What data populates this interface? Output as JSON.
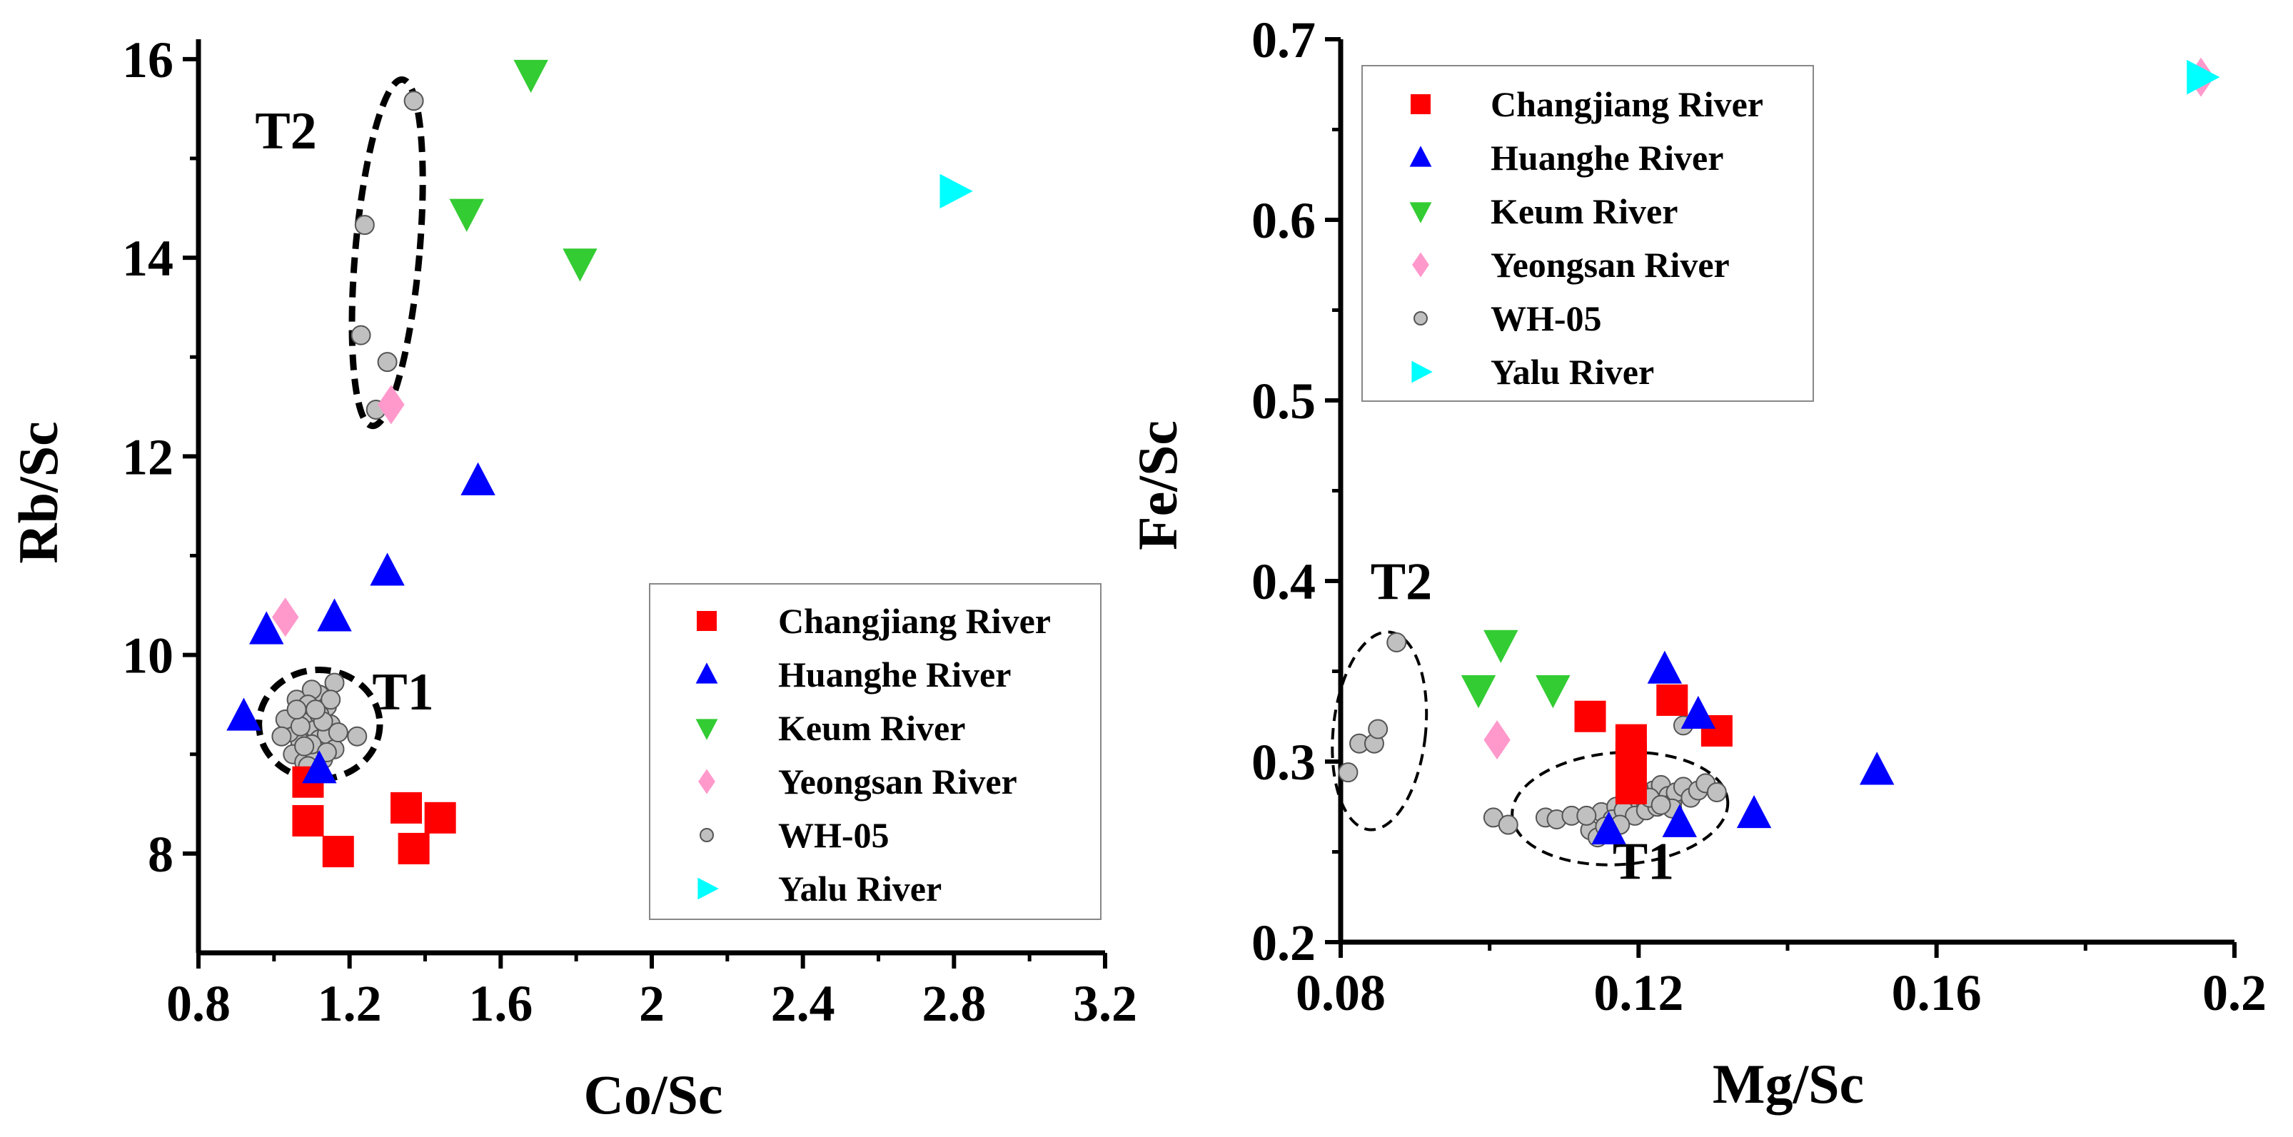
{
  "chart_data": [
    {
      "type": "scatter",
      "title": "",
      "xlabel": "Co/Sc",
      "ylabel": "Rb/Sc",
      "xlim": [
        0.8,
        3.2
      ],
      "ylim": [
        7,
        16.2
      ],
      "xticks": [
        0.8,
        1.2,
        1.6,
        2,
        2.4,
        2.8,
        3.2
      ],
      "xtick_labels": [
        "0.8",
        "1.2",
        "1.6",
        "2",
        "2.4",
        "2.8",
        "3.2"
      ],
      "yticks": [
        8,
        10,
        12,
        14,
        16
      ],
      "ytick_labels": [
        "8",
        "10",
        "12",
        "14",
        "16"
      ],
      "grid": false,
      "legend_position": "bottom-right",
      "series": [
        {
          "name": "Changjiang River",
          "marker": "square",
          "color": "#ff0000",
          "points": [
            [
              1.09,
              8.33
            ],
            [
              1.17,
              8.02
            ],
            [
              1.35,
              8.46
            ],
            [
              1.37,
              8.05
            ],
            [
              1.44,
              8.36
            ],
            [
              1.09,
              8.72
            ]
          ]
        },
        {
          "name": "Huanghe River",
          "marker": "triangle-up",
          "color": "#0000ff",
          "points": [
            [
              0.92,
              9.38
            ],
            [
              0.98,
              10.25
            ],
            [
              1.12,
              8.85
            ],
            [
              1.16,
              10.38
            ],
            [
              1.3,
              10.84
            ],
            [
              1.54,
              11.75
            ]
          ]
        },
        {
          "name": "Keum River",
          "marker": "triangle-down",
          "color": "#33cc33",
          "points": [
            [
              1.68,
              15.85
            ],
            [
              1.51,
              14.45
            ],
            [
              1.81,
              13.95
            ]
          ]
        },
        {
          "name": "Yeongsan River",
          "marker": "diamond",
          "color": "#ff99cc",
          "points": [
            [
              1.03,
              10.38
            ],
            [
              1.31,
              12.52
            ]
          ]
        },
        {
          "name": "WH-05",
          "marker": "circle",
          "color": "#c0c0c0",
          "points": [
            [
              1.37,
              15.58
            ],
            [
              1.24,
              14.33
            ],
            [
              1.23,
              13.22
            ],
            [
              1.3,
              12.95
            ],
            [
              1.27,
              12.47
            ],
            [
              1.22,
              9.18
            ],
            [
              1.06,
              9.55
            ],
            [
              1.08,
              9.42
            ],
            [
              1.1,
              9.35
            ],
            [
              1.12,
              9.6
            ],
            [
              1.14,
              9.48
            ],
            [
              1.16,
              9.72
            ],
            [
              1.07,
              9.12
            ],
            [
              1.09,
              9.05
            ],
            [
              1.11,
              9.25
            ],
            [
              1.13,
              8.95
            ],
            [
              1.15,
              9.3
            ],
            [
              1.05,
              9.0
            ],
            [
              1.08,
              8.92
            ],
            [
              1.1,
              9.65
            ],
            [
              1.12,
              9.15
            ],
            [
              1.14,
              9.2
            ],
            [
              1.06,
              9.3
            ],
            [
              1.09,
              9.5
            ],
            [
              1.11,
              8.98
            ],
            [
              1.04,
              9.22
            ],
            [
              1.16,
              9.05
            ],
            [
              1.12,
              9.4
            ],
            [
              1.1,
              9.1
            ],
            [
              1.03,
              9.35
            ],
            [
              1.15,
              9.55
            ],
            [
              1.07,
              9.28
            ],
            [
              1.13,
              9.33
            ],
            [
              1.08,
              9.08
            ],
            [
              1.11,
              9.45
            ],
            [
              1.09,
              8.88
            ],
            [
              1.14,
              9.02
            ],
            [
              1.02,
              9.18
            ],
            [
              1.17,
              9.22
            ],
            [
              1.06,
              9.45
            ]
          ]
        },
        {
          "name": "Yalu River",
          "marker": "triangle-right",
          "color": "#00ffff",
          "points": [
            [
              2.8,
              14.67
            ]
          ]
        }
      ],
      "annotations": [
        {
          "text": "T2",
          "x": 0.95,
          "y": 15.1,
          "ellipse": {
            "cx": 1.3,
            "cy": 14.05,
            "rx": 0.085,
            "ry": 1.75,
            "rotate": 5
          }
        },
        {
          "text": "T1",
          "x": 1.26,
          "y": 9.45,
          "ellipse": {
            "cx": 1.12,
            "cy": 9.3,
            "rx": 0.16,
            "ry": 0.55,
            "rotate": 0
          }
        }
      ]
    },
    {
      "type": "scatter",
      "title": "",
      "xlabel": "Mg/Sc",
      "ylabel": "Fe/Sc",
      "xlim": [
        0.08,
        0.2
      ],
      "ylim": [
        0.2,
        0.7
      ],
      "xticks": [
        0.08,
        0.12,
        0.16,
        0.2
      ],
      "xtick_labels": [
        "0.08",
        "0.12",
        "0.16",
        "0.2"
      ],
      "yticks": [
        0.2,
        0.3,
        0.4,
        0.5,
        0.6,
        0.7
      ],
      "ytick_labels": [
        "0.2",
        "0.3",
        "0.4",
        "0.5",
        "0.6",
        "0.7"
      ],
      "grid": false,
      "legend_position": "top-left",
      "series": [
        {
          "name": "Changjiang River",
          "marker": "square",
          "color": "#ff0000",
          "points": [
            [
              0.1135,
              0.325
            ],
            [
              0.119,
              0.312
            ],
            [
              0.119,
              0.302
            ],
            [
              0.1245,
              0.334
            ],
            [
              0.1305,
              0.317
            ],
            [
              0.119,
              0.285
            ]
          ]
        },
        {
          "name": "Huanghe River",
          "marker": "triangle-up",
          "color": "#0000ff",
          "points": [
            [
              0.1235,
              0.351
            ],
            [
              0.128,
              0.326
            ],
            [
              0.1255,
              0.266
            ],
            [
              0.1355,
              0.271
            ],
            [
              0.152,
              0.295
            ],
            [
              0.116,
              0.262
            ]
          ]
        },
        {
          "name": "Keum River",
          "marker": "triangle-down",
          "color": "#33cc33",
          "points": [
            [
              0.0985,
              0.34
            ],
            [
              0.1015,
              0.365
            ],
            [
              0.1085,
              0.34
            ]
          ]
        },
        {
          "name": "Yeongsan River",
          "marker": "diamond",
          "color": "#ff99cc",
          "points": [
            [
              0.101,
              0.312
            ],
            [
              0.1955,
              0.679
            ]
          ]
        },
        {
          "name": "WH-05",
          "marker": "circle",
          "color": "#c0c0c0",
          "points": [
            [
              0.0875,
              0.366
            ],
            [
              0.0825,
              0.31
            ],
            [
              0.0845,
              0.31
            ],
            [
              0.085,
              0.318
            ],
            [
              0.081,
              0.294
            ],
            [
              0.1005,
              0.269
            ],
            [
              0.1025,
              0.265
            ],
            [
              0.1075,
              0.269
            ],
            [
              0.109,
              0.268
            ],
            [
              0.111,
              0.27
            ],
            [
              0.1135,
              0.262
            ],
            [
              0.1145,
              0.258
            ],
            [
              0.115,
              0.272
            ],
            [
              0.117,
              0.275
            ],
            [
              0.1185,
              0.28
            ],
            [
              0.1195,
              0.278
            ],
            [
              0.12,
              0.282
            ],
            [
              0.121,
              0.276
            ],
            [
              0.122,
              0.284
            ],
            [
              0.1225,
              0.279
            ],
            [
              0.123,
              0.287
            ],
            [
              0.124,
              0.281
            ],
            [
              0.1245,
              0.277
            ],
            [
              0.125,
              0.283
            ],
            [
              0.126,
              0.286
            ],
            [
              0.127,
              0.28
            ],
            [
              0.128,
              0.284
            ],
            [
              0.129,
              0.288
            ],
            [
              0.1305,
              0.283
            ],
            [
              0.1165,
              0.268
            ],
            [
              0.118,
              0.273
            ],
            [
              0.1195,
              0.27
            ],
            [
              0.121,
              0.273
            ],
            [
              0.1225,
              0.275
            ],
            [
              0.12,
              0.285
            ],
            [
              0.1175,
              0.265
            ],
            [
              0.113,
              0.27
            ],
            [
              0.1155,
              0.264
            ],
            [
              0.126,
              0.32
            ],
            [
              0.1245,
              0.274
            ],
            [
              0.1215,
              0.28
            ],
            [
              0.123,
              0.276
            ]
          ]
        },
        {
          "name": "Yalu River",
          "marker": "triangle-right",
          "color": "#00ffff",
          "points": [
            [
              0.1955,
              0.679
            ]
          ]
        }
      ],
      "annotations": [
        {
          "text": "T2",
          "x": 0.084,
          "y": 0.39,
          "ellipse": {
            "cx": 0.0852,
            "cy": 0.317,
            "rx": 0.0062,
            "ry": 0.055,
            "rotate": 6
          }
        },
        {
          "text": "T1",
          "x": 0.1165,
          "y": 0.235,
          "ellipse": {
            "cx": 0.1175,
            "cy": 0.274,
            "rx": 0.0145,
            "ry": 0.031,
            "rotate": -4
          }
        }
      ]
    }
  ]
}
